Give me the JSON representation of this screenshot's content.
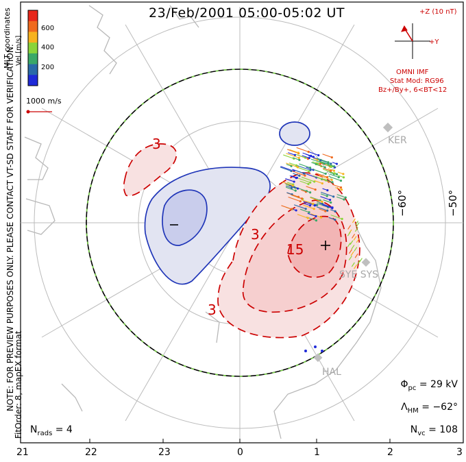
{
  "title": "23/Feb/2001 05:00-05:02 UT",
  "side_notes": {
    "preview": "NOTE: FOR PREVIEW PURPOSES ONLY. PLEASE CONTACT VT-SD STAFF FOR VERIFICATION.",
    "fit": "FitOrder: 8, mapEX format",
    "coords": "MLT coordinates"
  },
  "colorbar": {
    "label": "Vel [m/s]",
    "ticks": [
      "600",
      "400",
      "200"
    ],
    "colors": [
      "#e8271b",
      "#f06a1e",
      "#f7b21e",
      "#8ad43a",
      "#3aa868",
      "#2a6aa8",
      "#1f2ad8"
    ]
  },
  "vector_scale": "1000 m/s",
  "imf": {
    "z_label": "+Z (10 nT)",
    "y_label": "+Y",
    "source": "OMNI IMF",
    "model": "Stat Mod: RG96",
    "condition": "Bz+/By+, 6<BT<12"
  },
  "stats": {
    "phi_symbol": "Φ",
    "phi_sub": "pc",
    "phi_value": "= 29 kV",
    "lambda_symbol": "Λ",
    "lambda_sub": "HM",
    "lambda_value": "= −62°",
    "nvc_symbol": "N",
    "nvc_sub": "vc",
    "nvc_value": "= 108"
  },
  "nrads": {
    "symbol": "N",
    "sub": "rads",
    "value": "= 4"
  },
  "mlt_ticks": [
    "21",
    "22",
    "23",
    "0",
    "1",
    "2",
    "3"
  ],
  "lat_labels": [
    "−60°",
    "−50°"
  ],
  "stations": [
    "KER",
    "SYE SYS",
    "HAL"
  ],
  "contour_labels": [
    "3",
    "3",
    "15",
    "3"
  ],
  "markers": {
    "min": "−",
    "max": "+"
  },
  "colors": {
    "positive": "#cc0000",
    "negative": "#1f35b8",
    "grid": "#bbbbbb"
  }
}
